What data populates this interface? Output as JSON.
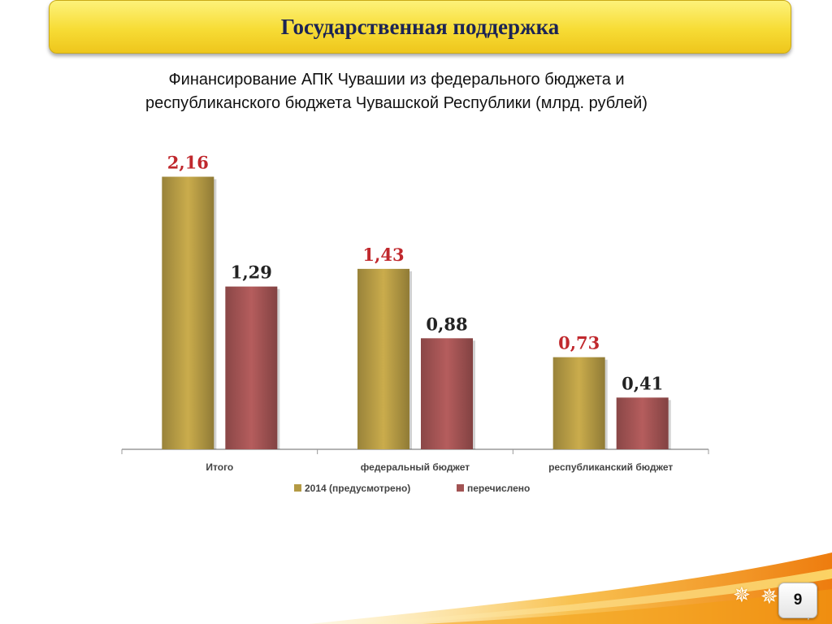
{
  "header": {
    "title": "Государственная поддержка"
  },
  "subtitle": {
    "line1": "Финансирование АПК Чувашии из федерального бюджета и",
    "line2": "республиканского бюджета Чувашской Республики (млрд. рублей)"
  },
  "page_number": "9",
  "colors": {
    "banner": "#f7dc35",
    "title_text": "#1c2455",
    "series_planned": "#b49a44",
    "series_transferred": "#a25353",
    "label_planned": "#c0282d",
    "label_transferred": "#222222",
    "swoosh": "#f39c12"
  },
  "chart_data": {
    "type": "bar",
    "categories": [
      "Итого",
      "федеральный бюджет",
      "республиканский бюджет"
    ],
    "series": [
      {
        "name": "2014 (предусмотрено)",
        "values": [
          2.16,
          1.43,
          0.73
        ],
        "labels": [
          "2,16",
          "1,43",
          "0,73"
        ],
        "color": "#b49a44",
        "label_color": "#c0282d"
      },
      {
        "name": "перечислено",
        "values": [
          1.29,
          0.88,
          0.41
        ],
        "labels": [
          "1,29",
          "0,88",
          "0,41"
        ],
        "color": "#a25353",
        "label_color": "#222222"
      }
    ],
    "ylim": [
      0,
      2.35
    ],
    "grid": false,
    "legend": "bottom"
  }
}
